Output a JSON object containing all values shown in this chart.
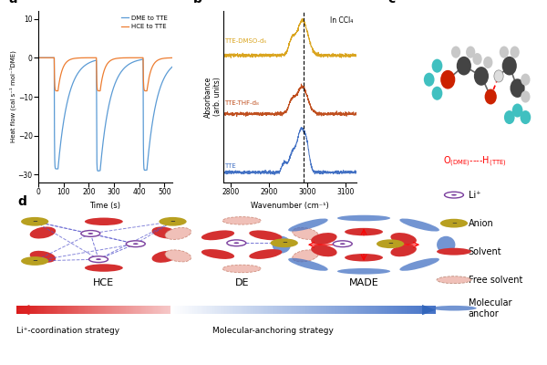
{
  "panel_a": {
    "title": "a",
    "xlabel": "Time (s)",
    "ylabel": "Heat flow (cal s⁻¹ mol⁻¹DME)",
    "xlim": [
      0,
      530
    ],
    "ylim": [
      -32,
      12
    ],
    "yticks": [
      10,
      0,
      -10,
      -20,
      -30
    ],
    "line1_label": "DME to TTE",
    "line1_color": "#5B9BD5",
    "line2_label": "HCE to TTE",
    "line2_color": "#ED7D31"
  },
  "panel_b": {
    "title": "b",
    "xlabel": "Wavenumber (cm⁻¹)",
    "ylabel": "Absorbance\n(arb. units)",
    "xlim": [
      2780,
      3130
    ],
    "dashed_x": 2990,
    "label1": "TTE-DMSO-d₆",
    "label2": "TTE-THF-d₈",
    "label3": "TTE",
    "annotation": "In CCl₄",
    "color1": "#DAA520",
    "color2": "#C05020",
    "color3": "#4472C4"
  },
  "panel_c": {
    "title": "c",
    "label": "O₍DME₎----H₍TTE₎",
    "label_color": "#FF0000"
  },
  "panel_d": {
    "title": "d",
    "hce_label": "HCE",
    "de_label": "DE",
    "made_label": "MADE",
    "arrow1_label": "Li⁺-coordination strategy",
    "arrow2_label": "Molecular-anchoring strategy",
    "legend_items": [
      "Li⁺",
      "Anion",
      "Solvent",
      "Free solvent",
      "Molecular\nanchor"
    ],
    "li_color": "#7B3F9E",
    "anion_color": "#B8A020",
    "solvent_color": "#D43030",
    "free_solvent_color": "#F0C0B8",
    "anchor_color": "#4472C4"
  }
}
